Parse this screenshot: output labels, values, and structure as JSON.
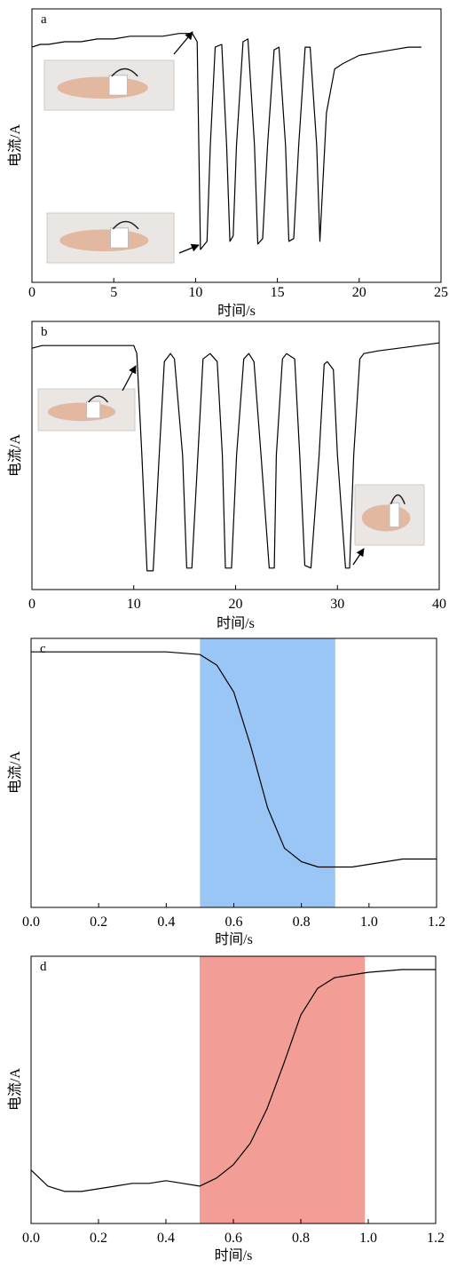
{
  "figure": {
    "panels": [
      {
        "label": "a",
        "xlabel": "时间/s",
        "ylabel": "电流/A",
        "photos": [
          {
            "name": "finger-straight-photo",
            "alt": ""
          },
          {
            "name": "finger-bent-photo",
            "alt": ""
          }
        ]
      },
      {
        "label": "b",
        "xlabel": "时间/s",
        "ylabel": "电流/A",
        "photos": [
          {
            "name": "wrist-straight-photo",
            "alt": ""
          },
          {
            "name": "wrist-bent-photo",
            "alt": ""
          }
        ]
      },
      {
        "label": "c",
        "xlabel": "时间/s",
        "ylabel": "电流/A",
        "shade_color": "#99c6f5"
      },
      {
        "label": "d",
        "xlabel": "时间/s",
        "ylabel": "电流/A",
        "shade_color": "#f29d96"
      }
    ]
  },
  "chart_data": [
    {
      "type": "line",
      "title": "a",
      "xlabel": "时间/s",
      "ylabel": "电流/A",
      "xlim": [
        0,
        25
      ],
      "xticks": [
        0,
        5,
        10,
        15,
        20,
        25
      ],
      "ylim": [
        0,
        1
      ],
      "y_tick_labels_shown": false,
      "grid": false,
      "series": [
        {
          "x": [
            0,
            0.5,
            1,
            2,
            3,
            4,
            5,
            6,
            7,
            8,
            9,
            9.8,
            10.1,
            10.3,
            10.7,
            10.9,
            11.2,
            11.6,
            11.9,
            12.1,
            12.3,
            12.5,
            12.9,
            13.2,
            13.6,
            13.8,
            14.1,
            14.4,
            14.8,
            15.1,
            15.5,
            15.7,
            16,
            16.3,
            16.7,
            17,
            17.4,
            17.6,
            18,
            18.5,
            19,
            20,
            21,
            22,
            23,
            23.8
          ],
          "y": [
            0.86,
            0.87,
            0.87,
            0.88,
            0.88,
            0.89,
            0.89,
            0.9,
            0.9,
            0.9,
            0.91,
            0.91,
            0.88,
            0.12,
            0.15,
            0.5,
            0.86,
            0.87,
            0.5,
            0.15,
            0.17,
            0.5,
            0.88,
            0.89,
            0.5,
            0.14,
            0.16,
            0.5,
            0.85,
            0.86,
            0.5,
            0.15,
            0.16,
            0.5,
            0.86,
            0.86,
            0.5,
            0.15,
            0.62,
            0.78,
            0.8,
            0.83,
            0.84,
            0.85,
            0.86,
            0.86
          ]
        }
      ]
    },
    {
      "type": "line",
      "title": "b",
      "xlabel": "时间/s",
      "ylabel": "电流/A",
      "xlim": [
        0,
        40
      ],
      "xticks": [
        0,
        10,
        20,
        30,
        40
      ],
      "ylim": [
        0,
        1
      ],
      "y_tick_labels_shown": false,
      "grid": false,
      "series": [
        {
          "x": [
            0,
            1,
            3,
            6,
            9,
            10,
            10.3,
            10.8,
            11.3,
            11.9,
            12.5,
            13,
            13.6,
            14,
            14.8,
            15.2,
            15.7,
            16.3,
            16.8,
            17.5,
            18.2,
            18.7,
            19,
            19.6,
            20.1,
            20.8,
            21.3,
            21.8,
            22.5,
            23.3,
            23.8,
            24,
            24.6,
            25,
            25.8,
            26.3,
            26.8,
            27.4,
            28.2,
            28.7,
            29,
            29.6,
            30,
            30.8,
            31.2,
            31.6,
            32.2,
            32.6,
            34,
            36,
            38,
            40
          ],
          "y": [
            0.9,
            0.91,
            0.91,
            0.91,
            0.91,
            0.91,
            0.88,
            0.5,
            0.07,
            0.07,
            0.5,
            0.85,
            0.88,
            0.86,
            0.5,
            0.08,
            0.08,
            0.5,
            0.86,
            0.88,
            0.85,
            0.5,
            0.08,
            0.08,
            0.5,
            0.86,
            0.88,
            0.85,
            0.5,
            0.08,
            0.08,
            0.5,
            0.86,
            0.88,
            0.86,
            0.5,
            0.09,
            0.08,
            0.5,
            0.84,
            0.85,
            0.82,
            0.5,
            0.08,
            0.08,
            0.5,
            0.86,
            0.88,
            0.89,
            0.9,
            0.91,
            0.92
          ]
        }
      ]
    },
    {
      "type": "line",
      "title": "c",
      "xlabel": "时间/s",
      "ylabel": "电流/A",
      "xlim": [
        0,
        1.2
      ],
      "xticks": [
        0,
        0.2,
        0.4,
        0.6,
        0.8,
        1.0,
        1.2
      ],
      "ylim": [
        0,
        1
      ],
      "y_tick_labels_shown": false,
      "grid": false,
      "shaded_region": [
        0.5,
        0.9
      ],
      "series": [
        {
          "x": [
            0,
            0.1,
            0.2,
            0.3,
            0.4,
            0.5,
            0.55,
            0.6,
            0.65,
            0.7,
            0.75,
            0.8,
            0.85,
            0.9,
            0.95,
            1.0,
            1.05,
            1.1,
            1.15,
            1.2
          ],
          "y": [
            0.95,
            0.95,
            0.95,
            0.95,
            0.95,
            0.94,
            0.9,
            0.8,
            0.6,
            0.37,
            0.22,
            0.17,
            0.15,
            0.15,
            0.15,
            0.16,
            0.17,
            0.18,
            0.18,
            0.18
          ]
        }
      ]
    },
    {
      "type": "line",
      "title": "d",
      "xlabel": "时间/s",
      "ylabel": "电流/A",
      "xlim": [
        0,
        1.2
      ],
      "xticks": [
        0,
        0.2,
        0.4,
        0.6,
        0.8,
        1.0,
        1.2
      ],
      "ylim": [
        0,
        1
      ],
      "y_tick_labels_shown": false,
      "grid": false,
      "shaded_region": [
        0.5,
        0.99
      ],
      "series": [
        {
          "x": [
            0,
            0.05,
            0.1,
            0.15,
            0.2,
            0.25,
            0.3,
            0.35,
            0.4,
            0.45,
            0.5,
            0.55,
            0.6,
            0.65,
            0.7,
            0.75,
            0.8,
            0.85,
            0.9,
            0.95,
            1.0,
            1.1,
            1.2
          ],
          "y": [
            0.2,
            0.14,
            0.12,
            0.12,
            0.13,
            0.14,
            0.15,
            0.15,
            0.16,
            0.15,
            0.14,
            0.17,
            0.22,
            0.3,
            0.43,
            0.6,
            0.78,
            0.88,
            0.92,
            0.93,
            0.94,
            0.95,
            0.95
          ]
        }
      ]
    }
  ]
}
